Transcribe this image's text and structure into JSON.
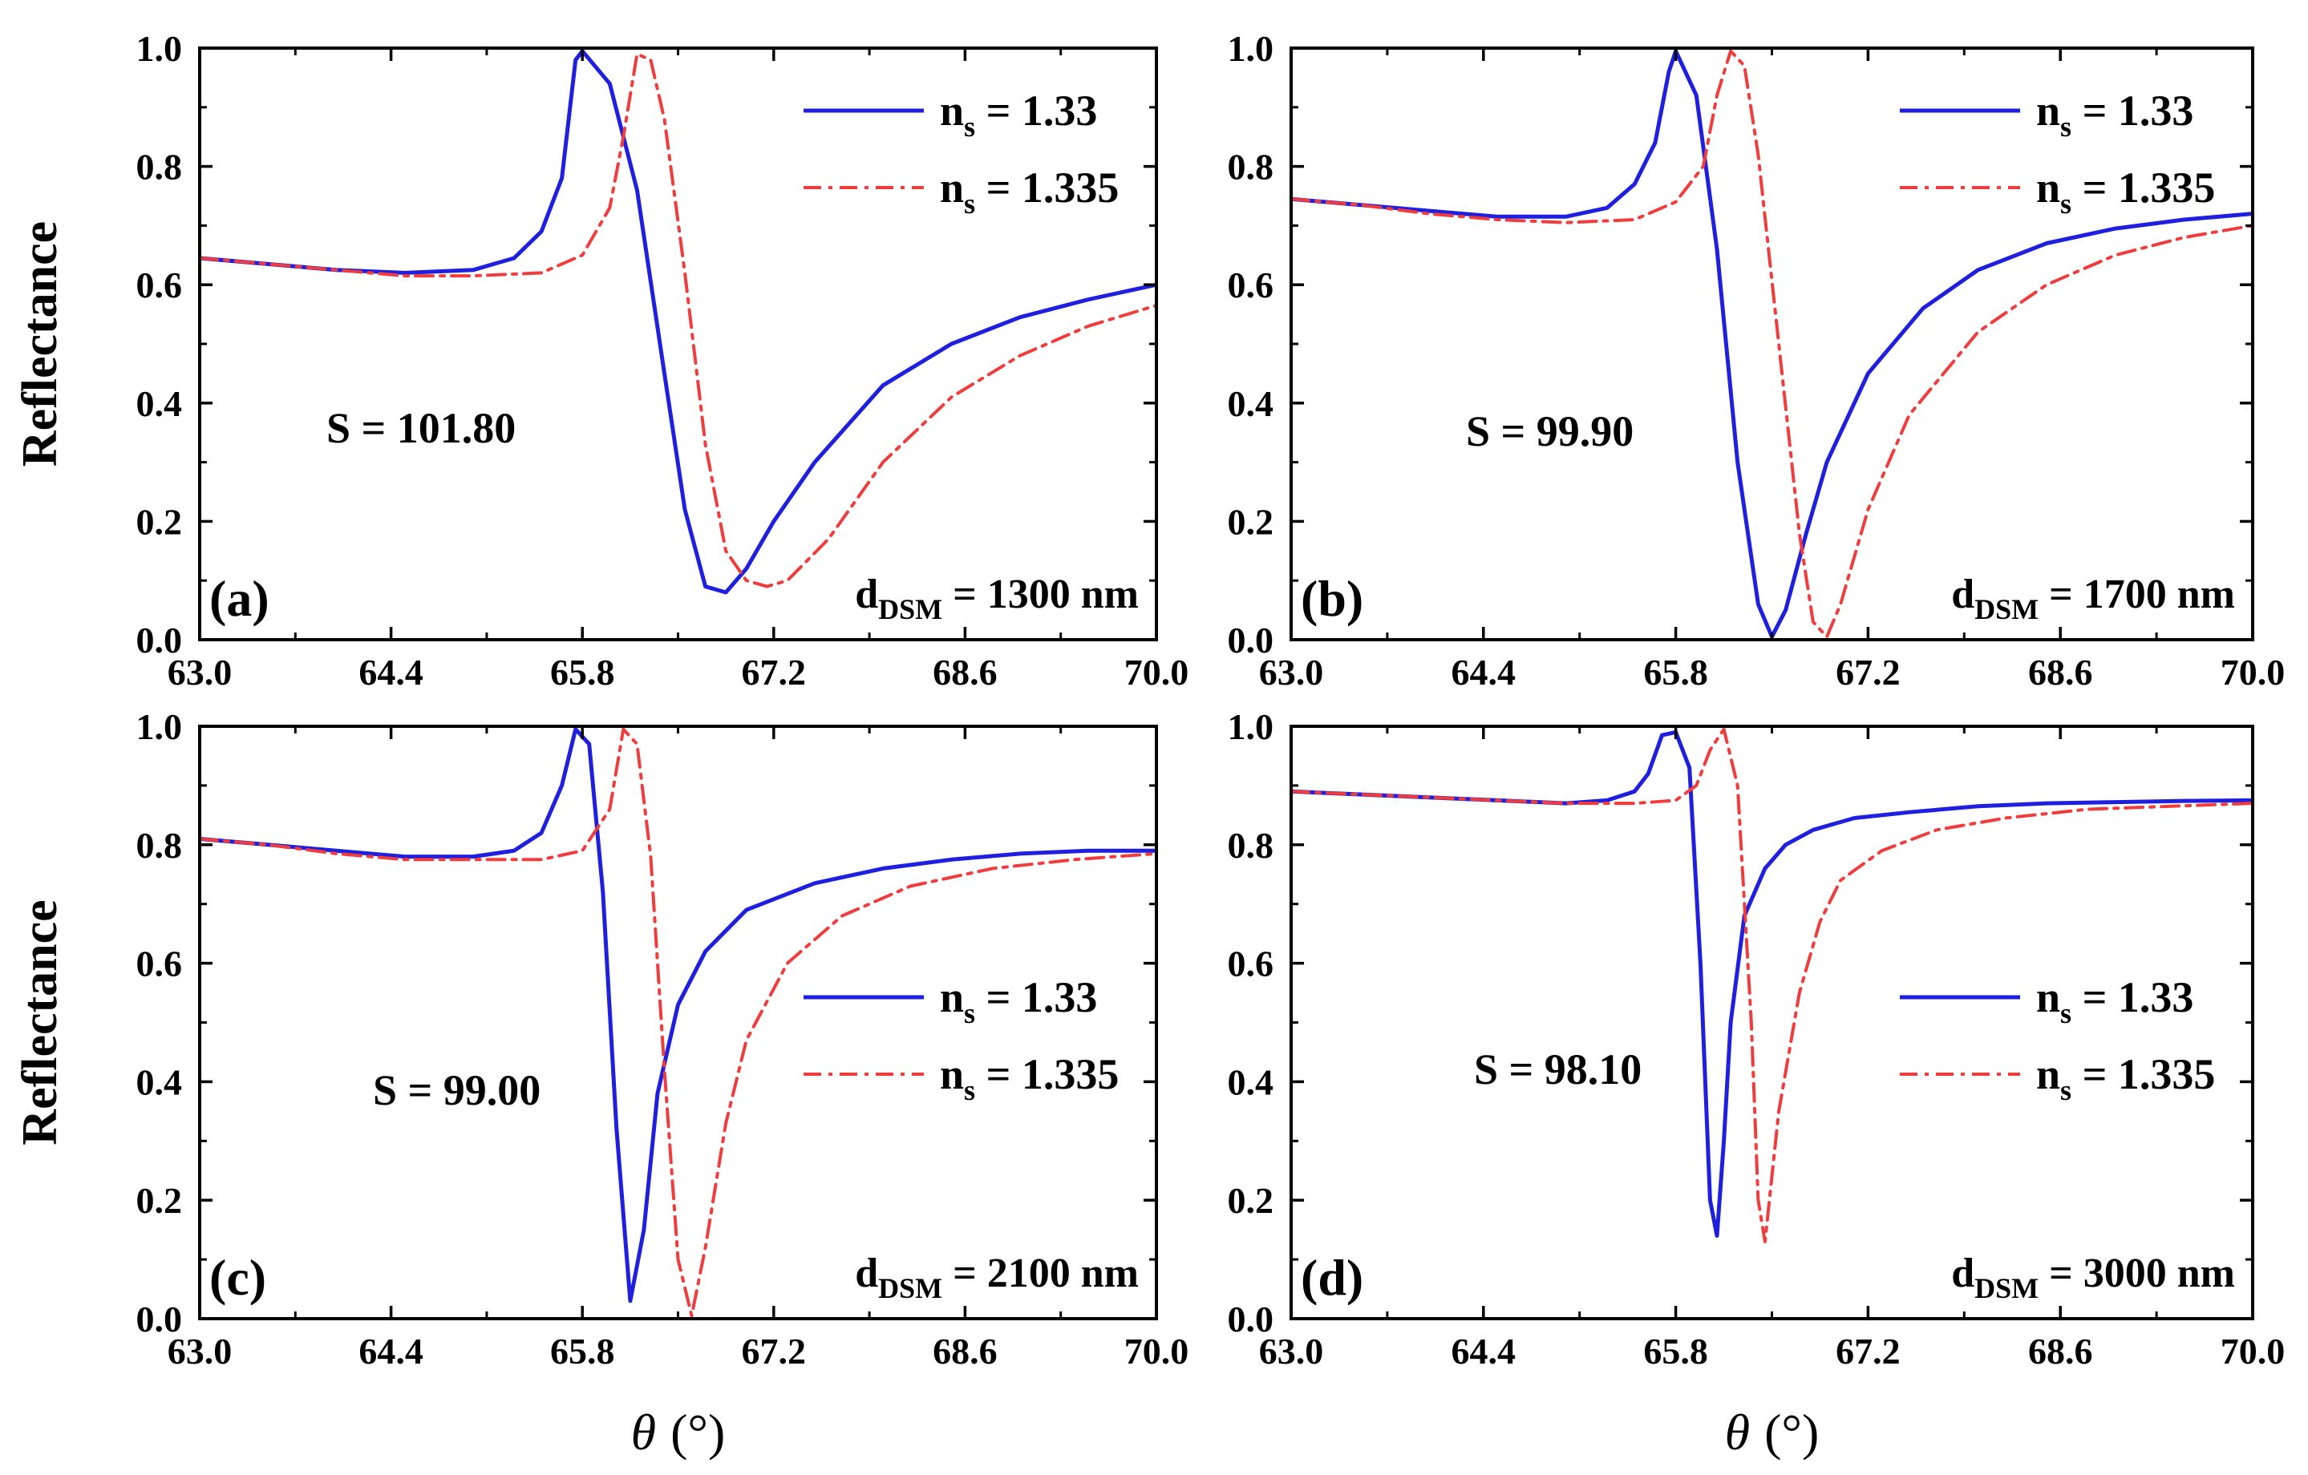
{
  "colors": {
    "series1": "#1f1fe0",
    "series2": "#f03c3c",
    "axis": "#000000",
    "background": "#ffffff"
  },
  "chart_data": [
    {
      "type": "line",
      "panel_label": "(a)",
      "xlabel_symbol": "θ",
      "xlabel_unit": "(°)",
      "ylabel": "Reflectance",
      "xlim": [
        63.0,
        70.0
      ],
      "ylim": [
        0.0,
        1.0
      ],
      "xticks": [
        "63.0",
        "64.4",
        "65.8",
        "67.2",
        "68.6",
        "70.0"
      ],
      "yticks": [
        "0.0",
        "0.2",
        "0.4",
        "0.6",
        "0.8",
        "1.0"
      ],
      "show_xlabel": false,
      "show_ylabel": true,
      "sensitivity": "S = 101.80",
      "thickness": {
        "prefix": "d",
        "subscript": "DSM",
        "value": " = 1300 nm"
      },
      "legend": {
        "position": "top-right"
      },
      "series": [
        {
          "name_main": "n",
          "name_sub": "s",
          "name_value": " = 1.33",
          "style": "solid",
          "x": [
            63.0,
            63.5,
            64.0,
            64.5,
            65.0,
            65.3,
            65.5,
            65.65,
            65.75,
            65.8,
            66.0,
            66.2,
            66.4,
            66.55,
            66.7,
            66.85,
            67.0,
            67.2,
            67.5,
            68.0,
            68.5,
            69.0,
            69.5,
            70.0
          ],
          "values": [
            0.645,
            0.635,
            0.625,
            0.62,
            0.625,
            0.645,
            0.69,
            0.78,
            0.98,
            0.995,
            0.94,
            0.76,
            0.45,
            0.22,
            0.09,
            0.08,
            0.12,
            0.2,
            0.3,
            0.43,
            0.5,
            0.545,
            0.575,
            0.6
          ]
        },
        {
          "name_main": "n",
          "name_sub": "s",
          "name_value": " = 1.335",
          "style": "dashdot",
          "x": [
            63.0,
            63.5,
            64.0,
            64.5,
            65.0,
            65.5,
            65.8,
            66.0,
            66.1,
            66.2,
            66.3,
            66.4,
            66.55,
            66.7,
            66.85,
            67.0,
            67.15,
            67.3,
            67.6,
            68.0,
            68.5,
            69.0,
            69.5,
            70.0
          ],
          "values": [
            0.645,
            0.635,
            0.625,
            0.615,
            0.615,
            0.62,
            0.65,
            0.73,
            0.85,
            0.99,
            0.98,
            0.88,
            0.62,
            0.33,
            0.15,
            0.1,
            0.09,
            0.1,
            0.17,
            0.3,
            0.41,
            0.48,
            0.53,
            0.565
          ]
        }
      ]
    },
    {
      "type": "line",
      "panel_label": "(b)",
      "xlabel_symbol": "θ",
      "xlabel_unit": "(°)",
      "ylabel": "Reflectance",
      "xlim": [
        63.0,
        70.0
      ],
      "ylim": [
        0.0,
        1.0
      ],
      "xticks": [
        "63.0",
        "64.4",
        "65.8",
        "67.2",
        "68.6",
        "70.0"
      ],
      "yticks": [
        "0.0",
        "0.2",
        "0.4",
        "0.6",
        "0.8",
        "1.0"
      ],
      "show_xlabel": false,
      "show_ylabel": false,
      "sensitivity": "S = 99.90",
      "thickness": {
        "prefix": "d",
        "subscript": "DSM",
        "value": " = 1700 nm"
      },
      "legend": {
        "position": "top-right"
      },
      "series": [
        {
          "name_main": "n",
          "name_sub": "s",
          "name_value": " = 1.33",
          "style": "solid",
          "x": [
            63.0,
            63.5,
            64.0,
            64.5,
            65.0,
            65.3,
            65.5,
            65.65,
            65.75,
            65.8,
            65.95,
            66.1,
            66.25,
            66.4,
            66.5,
            66.6,
            66.75,
            66.9,
            67.2,
            67.6,
            68.0,
            68.5,
            69.0,
            69.5,
            70.0
          ],
          "values": [
            0.745,
            0.735,
            0.725,
            0.715,
            0.715,
            0.73,
            0.77,
            0.84,
            0.96,
            0.995,
            0.92,
            0.66,
            0.3,
            0.06,
            0.005,
            0.05,
            0.18,
            0.3,
            0.45,
            0.56,
            0.625,
            0.67,
            0.695,
            0.71,
            0.72
          ]
        },
        {
          "name_main": "n",
          "name_sub": "s",
          "name_value": " = 1.335",
          "style": "dashdot",
          "x": [
            63.0,
            63.5,
            64.0,
            64.5,
            65.0,
            65.5,
            65.8,
            66.0,
            66.1,
            66.2,
            66.3,
            66.4,
            66.55,
            66.7,
            66.8,
            66.9,
            67.0,
            67.2,
            67.5,
            68.0,
            68.5,
            69.0,
            69.5,
            70.0
          ],
          "values": [
            0.745,
            0.735,
            0.72,
            0.71,
            0.705,
            0.71,
            0.74,
            0.8,
            0.92,
            0.995,
            0.97,
            0.82,
            0.5,
            0.18,
            0.03,
            0.005,
            0.06,
            0.22,
            0.38,
            0.52,
            0.6,
            0.65,
            0.68,
            0.7
          ]
        }
      ]
    },
    {
      "type": "line",
      "panel_label": "(c)",
      "xlabel_symbol": "θ",
      "xlabel_unit": "(°)",
      "ylabel": "Reflectance",
      "xlim": [
        63.0,
        70.0
      ],
      "ylim": [
        0.0,
        1.0
      ],
      "xticks": [
        "63.0",
        "64.4",
        "65.8",
        "67.2",
        "68.6",
        "70.0"
      ],
      "yticks": [
        "0.0",
        "0.2",
        "0.4",
        "0.6",
        "0.8",
        "1.0"
      ],
      "show_xlabel": true,
      "show_ylabel": true,
      "sensitivity": "S = 99.00",
      "thickness": {
        "prefix": "d",
        "subscript": "DSM",
        "value": " = 2100 nm"
      },
      "legend": {
        "position": "center-right"
      },
      "series": [
        {
          "name_main": "n",
          "name_sub": "s",
          "name_value": " = 1.33",
          "style": "solid",
          "x": [
            63.0,
            63.5,
            64.0,
            64.5,
            65.0,
            65.3,
            65.5,
            65.65,
            65.75,
            65.85,
            65.95,
            66.05,
            66.15,
            66.25,
            66.35,
            66.5,
            66.7,
            67.0,
            67.5,
            68.0,
            68.5,
            69.0,
            69.5,
            70.0
          ],
          "values": [
            0.81,
            0.8,
            0.79,
            0.78,
            0.78,
            0.79,
            0.82,
            0.9,
            0.995,
            0.97,
            0.72,
            0.32,
            0.03,
            0.15,
            0.38,
            0.53,
            0.62,
            0.69,
            0.735,
            0.76,
            0.775,
            0.785,
            0.79,
            0.79
          ]
        },
        {
          "name_main": "n",
          "name_sub": "s",
          "name_value": " = 1.335",
          "style": "dashdot",
          "x": [
            63.0,
            63.5,
            64.0,
            64.5,
            65.0,
            65.5,
            65.8,
            66.0,
            66.1,
            66.2,
            66.3,
            66.4,
            66.5,
            66.6,
            66.7,
            66.85,
            67.0,
            67.3,
            67.7,
            68.2,
            68.8,
            69.4,
            70.0
          ],
          "values": [
            0.81,
            0.8,
            0.785,
            0.775,
            0.775,
            0.775,
            0.79,
            0.86,
            0.995,
            0.97,
            0.78,
            0.42,
            0.1,
            0.005,
            0.12,
            0.33,
            0.47,
            0.6,
            0.68,
            0.73,
            0.76,
            0.775,
            0.785
          ]
        }
      ]
    },
    {
      "type": "line",
      "panel_label": "(d)",
      "xlabel_symbol": "θ",
      "xlabel_unit": "(°)",
      "ylabel": "Reflectance",
      "xlim": [
        63.0,
        70.0
      ],
      "ylim": [
        0.0,
        1.0
      ],
      "xticks": [
        "63.0",
        "64.4",
        "65.8",
        "67.2",
        "68.6",
        "70.0"
      ],
      "yticks": [
        "0.0",
        "0.2",
        "0.4",
        "0.6",
        "0.8",
        "1.0"
      ],
      "show_xlabel": true,
      "show_ylabel": false,
      "sensitivity": "S = 98.10",
      "thickness": {
        "prefix": "d",
        "subscript": "DSM",
        "value": " = 3000 nm"
      },
      "legend": {
        "position": "center-right"
      },
      "series": [
        {
          "name_main": "n",
          "name_sub": "s",
          "name_value": " = 1.33",
          "style": "solid",
          "x": [
            63.0,
            63.5,
            64.0,
            64.5,
            65.0,
            65.3,
            65.5,
            65.6,
            65.7,
            65.8,
            65.9,
            65.98,
            66.05,
            66.1,
            66.15,
            66.2,
            66.3,
            66.45,
            66.6,
            66.8,
            67.1,
            67.5,
            68.0,
            68.5,
            69.0,
            69.5,
            70.0
          ],
          "values": [
            0.89,
            0.885,
            0.88,
            0.875,
            0.87,
            0.875,
            0.89,
            0.92,
            0.985,
            0.99,
            0.93,
            0.6,
            0.2,
            0.14,
            0.3,
            0.5,
            0.68,
            0.76,
            0.8,
            0.825,
            0.845,
            0.855,
            0.865,
            0.87,
            0.872,
            0.874,
            0.875
          ]
        },
        {
          "name_main": "n",
          "name_sub": "s",
          "name_value": " = 1.335",
          "style": "dashdot",
          "x": [
            63.0,
            63.5,
            64.0,
            64.5,
            65.0,
            65.5,
            65.8,
            65.95,
            66.05,
            66.15,
            66.25,
            66.35,
            66.4,
            66.45,
            66.55,
            66.7,
            66.85,
            67.0,
            67.3,
            67.7,
            68.2,
            68.8,
            69.4,
            70.0
          ],
          "values": [
            0.89,
            0.885,
            0.88,
            0.875,
            0.87,
            0.87,
            0.875,
            0.9,
            0.96,
            0.995,
            0.9,
            0.5,
            0.2,
            0.13,
            0.35,
            0.55,
            0.67,
            0.74,
            0.79,
            0.825,
            0.845,
            0.86,
            0.865,
            0.87
          ]
        }
      ]
    }
  ]
}
